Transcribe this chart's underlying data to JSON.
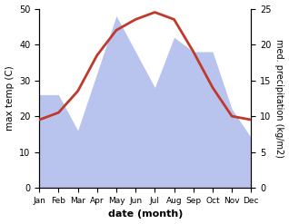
{
  "months": [
    "Jan",
    "Feb",
    "Mar",
    "Apr",
    "May",
    "Jun",
    "Jul",
    "Aug",
    "Sep",
    "Oct",
    "Nov",
    "Dec"
  ],
  "temperature": [
    19,
    21,
    27,
    37,
    44,
    47,
    49,
    47,
    38,
    28,
    20,
    19
  ],
  "precipitation": [
    13,
    13,
    8,
    16,
    24,
    19,
    14,
    21,
    19,
    19,
    11,
    7
  ],
  "temp_color": "#c0392b",
  "precip_color": "#b8c4ed",
  "ylabel_left": "max temp (C)",
  "ylabel_right": "med. precipitation (kg/m2)",
  "xlabel": "date (month)",
  "ylim_left": [
    0,
    50
  ],
  "ylim_right": [
    0,
    25
  ],
  "bg_color": "#ffffff",
  "temp_linewidth": 2.0
}
